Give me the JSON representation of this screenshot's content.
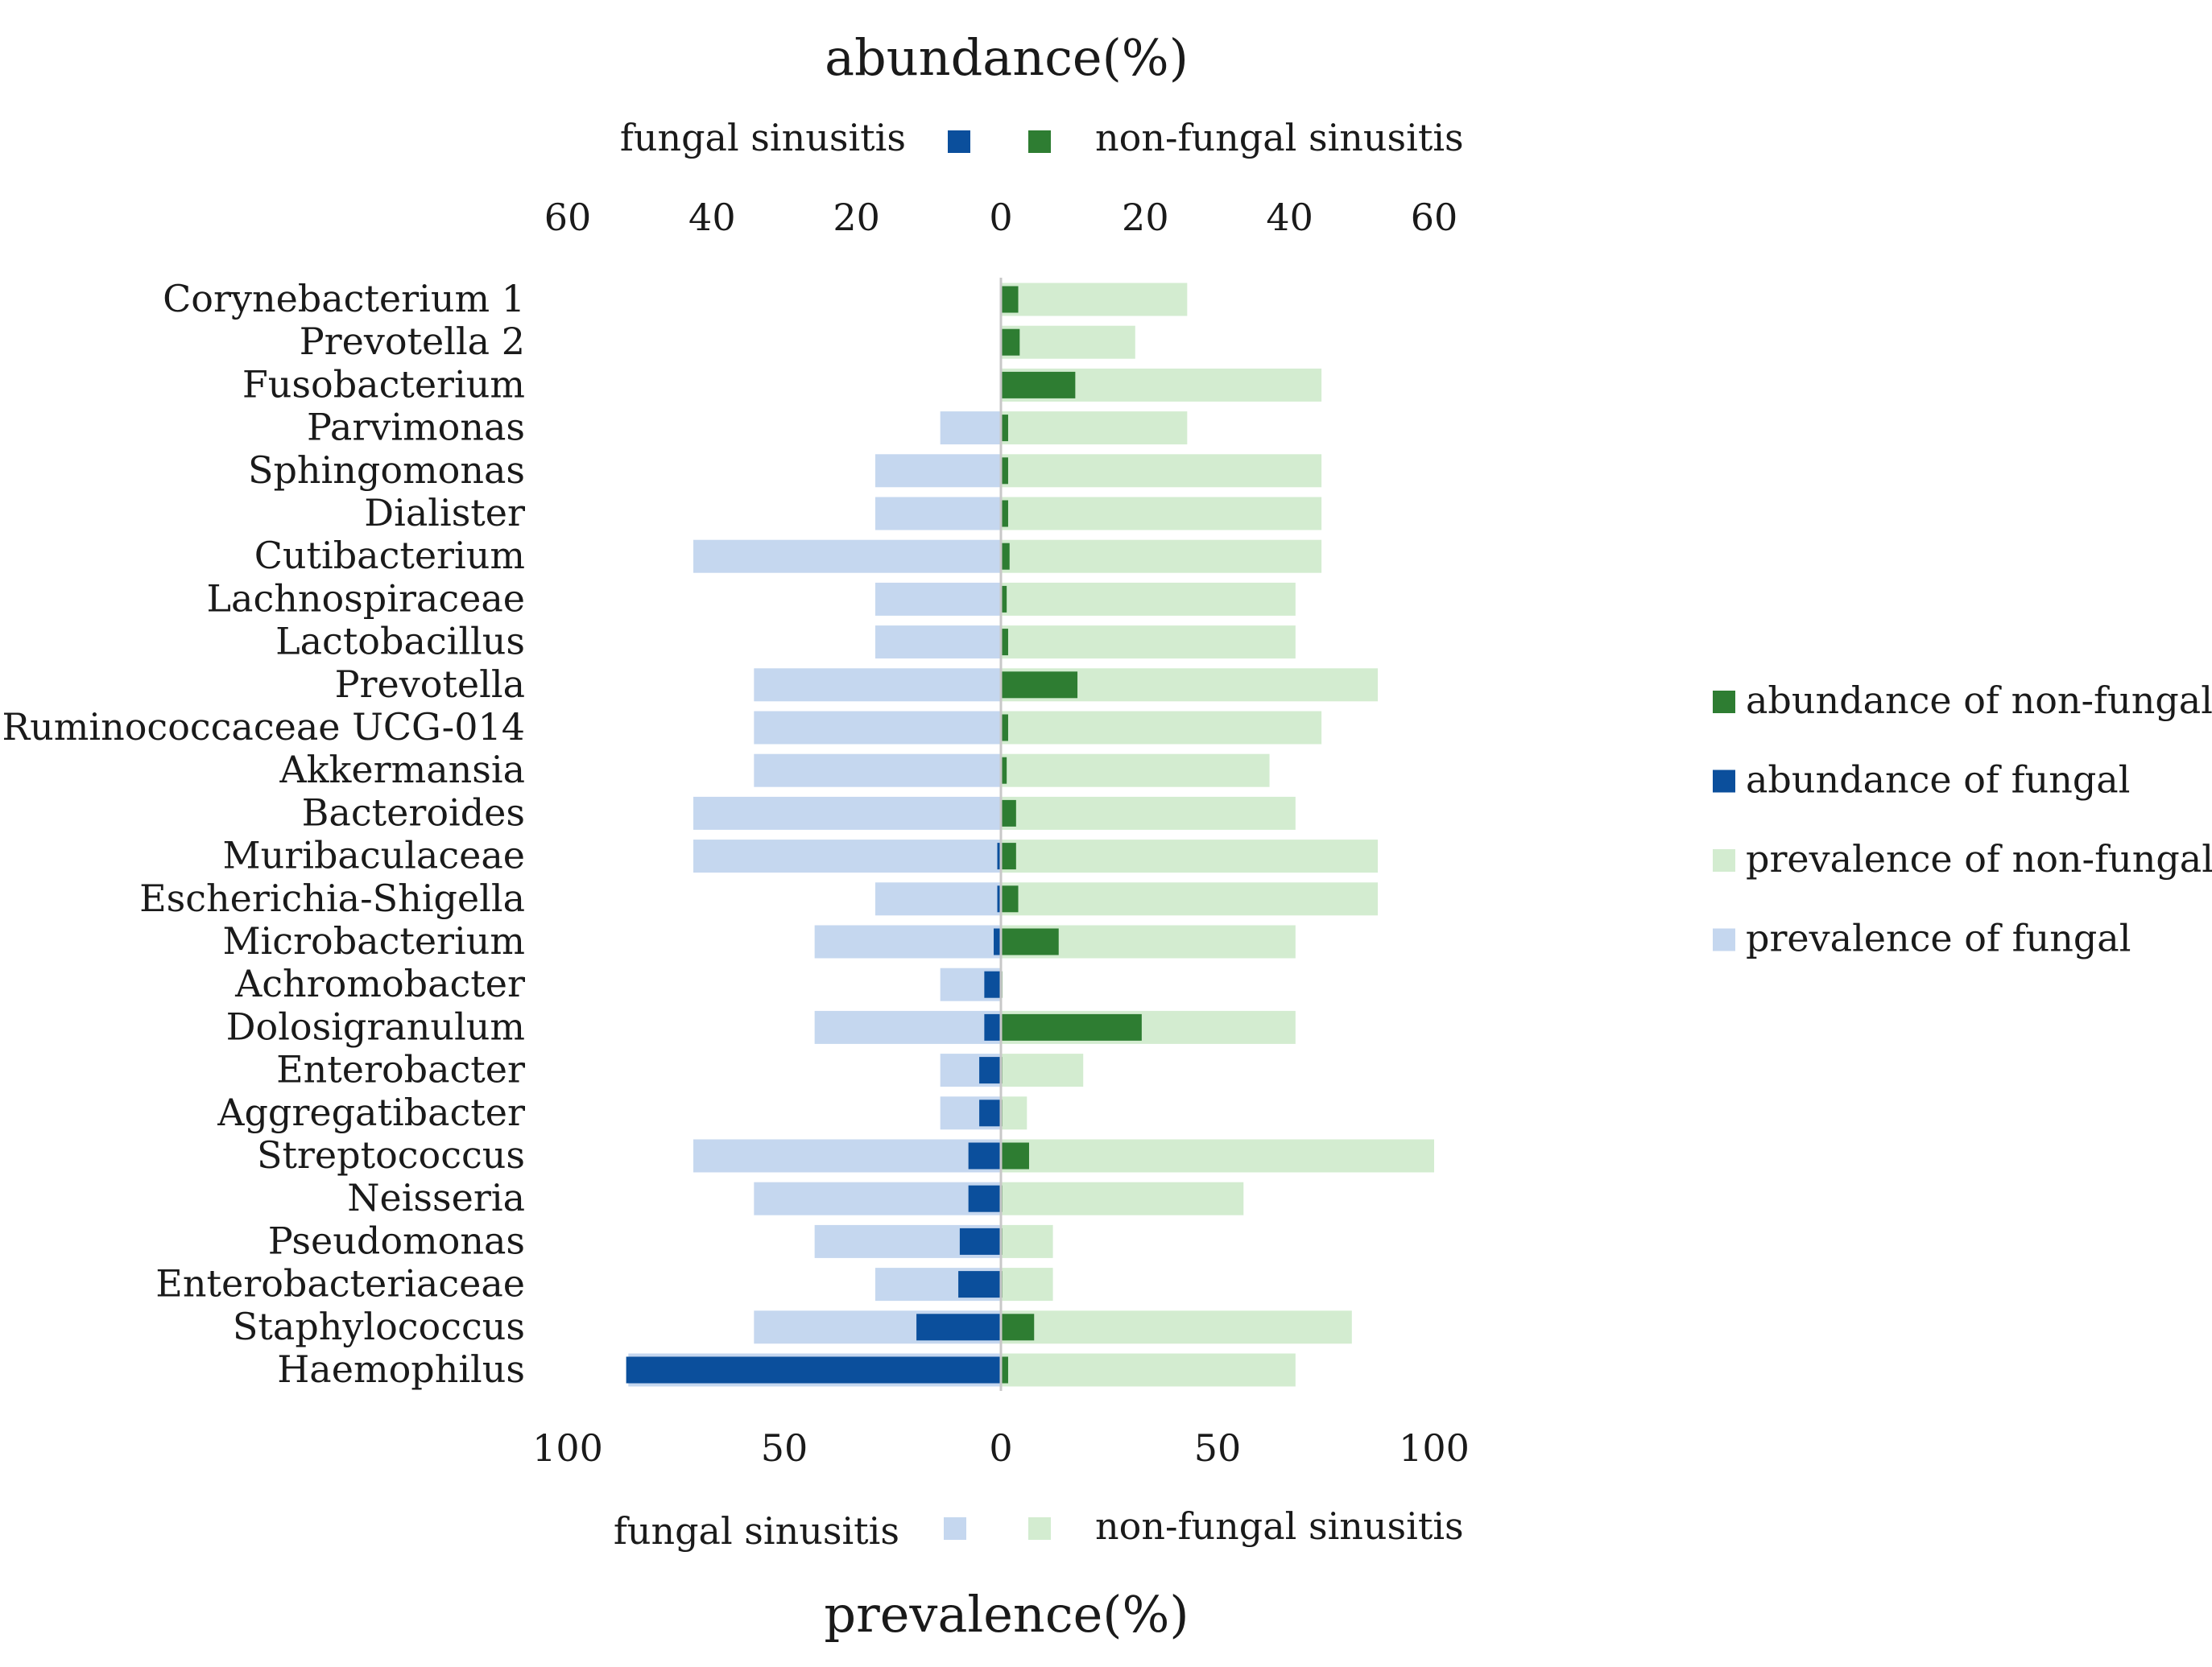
{
  "chart_data": {
    "type": "bar",
    "orientation": "horizontal-diverging",
    "title_top": "abundance(%)",
    "title_bottom": "prevalence(%)",
    "top_axis": {
      "label": "abundance(%)",
      "ticks": [
        60,
        40,
        20,
        0,
        20,
        40,
        60
      ],
      "range": [
        -60,
        60
      ],
      "legend": {
        "left": "fungal sinusitis",
        "right": "non-fungal sinusitis"
      }
    },
    "bottom_axis": {
      "label": "prevalence(%)",
      "ticks": [
        100,
        50,
        0,
        50,
        100
      ],
      "range": [
        -100,
        100
      ],
      "legend": {
        "left": "fungal sinusitis",
        "right": "non-fungal sinusitis"
      }
    },
    "categories": [
      "Corynebacterium 1",
      "Prevotella 2",
      "Fusobacterium",
      "Parvimonas",
      "Sphingomonas",
      "Dialister",
      "Cutibacterium",
      "Lachnospiraceae",
      "Lactobacillus",
      "Prevotella",
      "Ruminococcaceae UCG-014",
      "Akkermansia",
      "Bacteroides",
      "Muribaculaceae",
      "Escherichia-Shigella",
      "Microbacterium",
      "Achromobacter",
      "Dolosigranulum",
      "Enterobacter",
      "Aggregatibacter",
      "Streptococcus",
      "Neisseria",
      "Pseudomonas",
      "Enterobacteriaceae",
      "Staphylococcus",
      "Haemophilus"
    ],
    "series": [
      {
        "name": "abundance of non-fungal",
        "axis": "abundance",
        "side": "right",
        "color": "#2e7d32",
        "values": [
          2.4,
          2.6,
          10.3,
          1.0,
          1.0,
          1.0,
          1.2,
          0.8,
          1.0,
          10.6,
          1.0,
          0.8,
          2.1,
          2.1,
          2.4,
          8.0,
          0.2,
          19.5,
          0.2,
          0.2,
          3.9,
          0.2,
          0.2,
          0.2,
          4.6,
          1.0
        ]
      },
      {
        "name": "abundance of fungal",
        "axis": "abundance",
        "side": "left",
        "color": "#0b4f9c",
        "values": [
          0.0,
          0.0,
          0.0,
          0.0,
          0.0,
          0.0,
          0.0,
          0.0,
          0.0,
          0.0,
          0.0,
          0.0,
          0.0,
          0.5,
          0.5,
          1.0,
          2.3,
          2.3,
          3.0,
          3.0,
          4.5,
          4.5,
          5.7,
          5.9,
          11.7,
          51.9
        ]
      },
      {
        "name": "prevalence of non-fungal",
        "axis": "prevalence",
        "side": "right",
        "color": "#d3ecd0",
        "values": [
          43,
          31,
          74,
          43,
          74,
          74,
          74,
          68,
          68,
          87,
          74,
          62,
          68,
          87,
          87,
          68,
          0,
          68,
          19,
          6,
          100,
          56,
          12,
          12,
          81,
          68
        ]
      },
      {
        "name": "prevalence of fungal",
        "axis": "prevalence",
        "side": "left",
        "color": "#c5d7ef",
        "values": [
          0,
          0,
          0,
          14,
          29,
          29,
          71,
          29,
          29,
          57,
          57,
          57,
          71,
          71,
          29,
          43,
          14,
          43,
          14,
          14,
          71,
          57,
          43,
          29,
          57,
          86
        ]
      }
    ],
    "legend": {
      "placement": "right",
      "entries": [
        {
          "label": "abundance of non-fungal",
          "color": "#2e7d32"
        },
        {
          "label": "abundance of fungal",
          "color": "#0b4f9c"
        },
        {
          "label": "prevalence of non-fungal",
          "color": "#d3ecd0"
        },
        {
          "label": "prevalence of fungal",
          "color": "#c5d7ef"
        }
      ]
    }
  }
}
